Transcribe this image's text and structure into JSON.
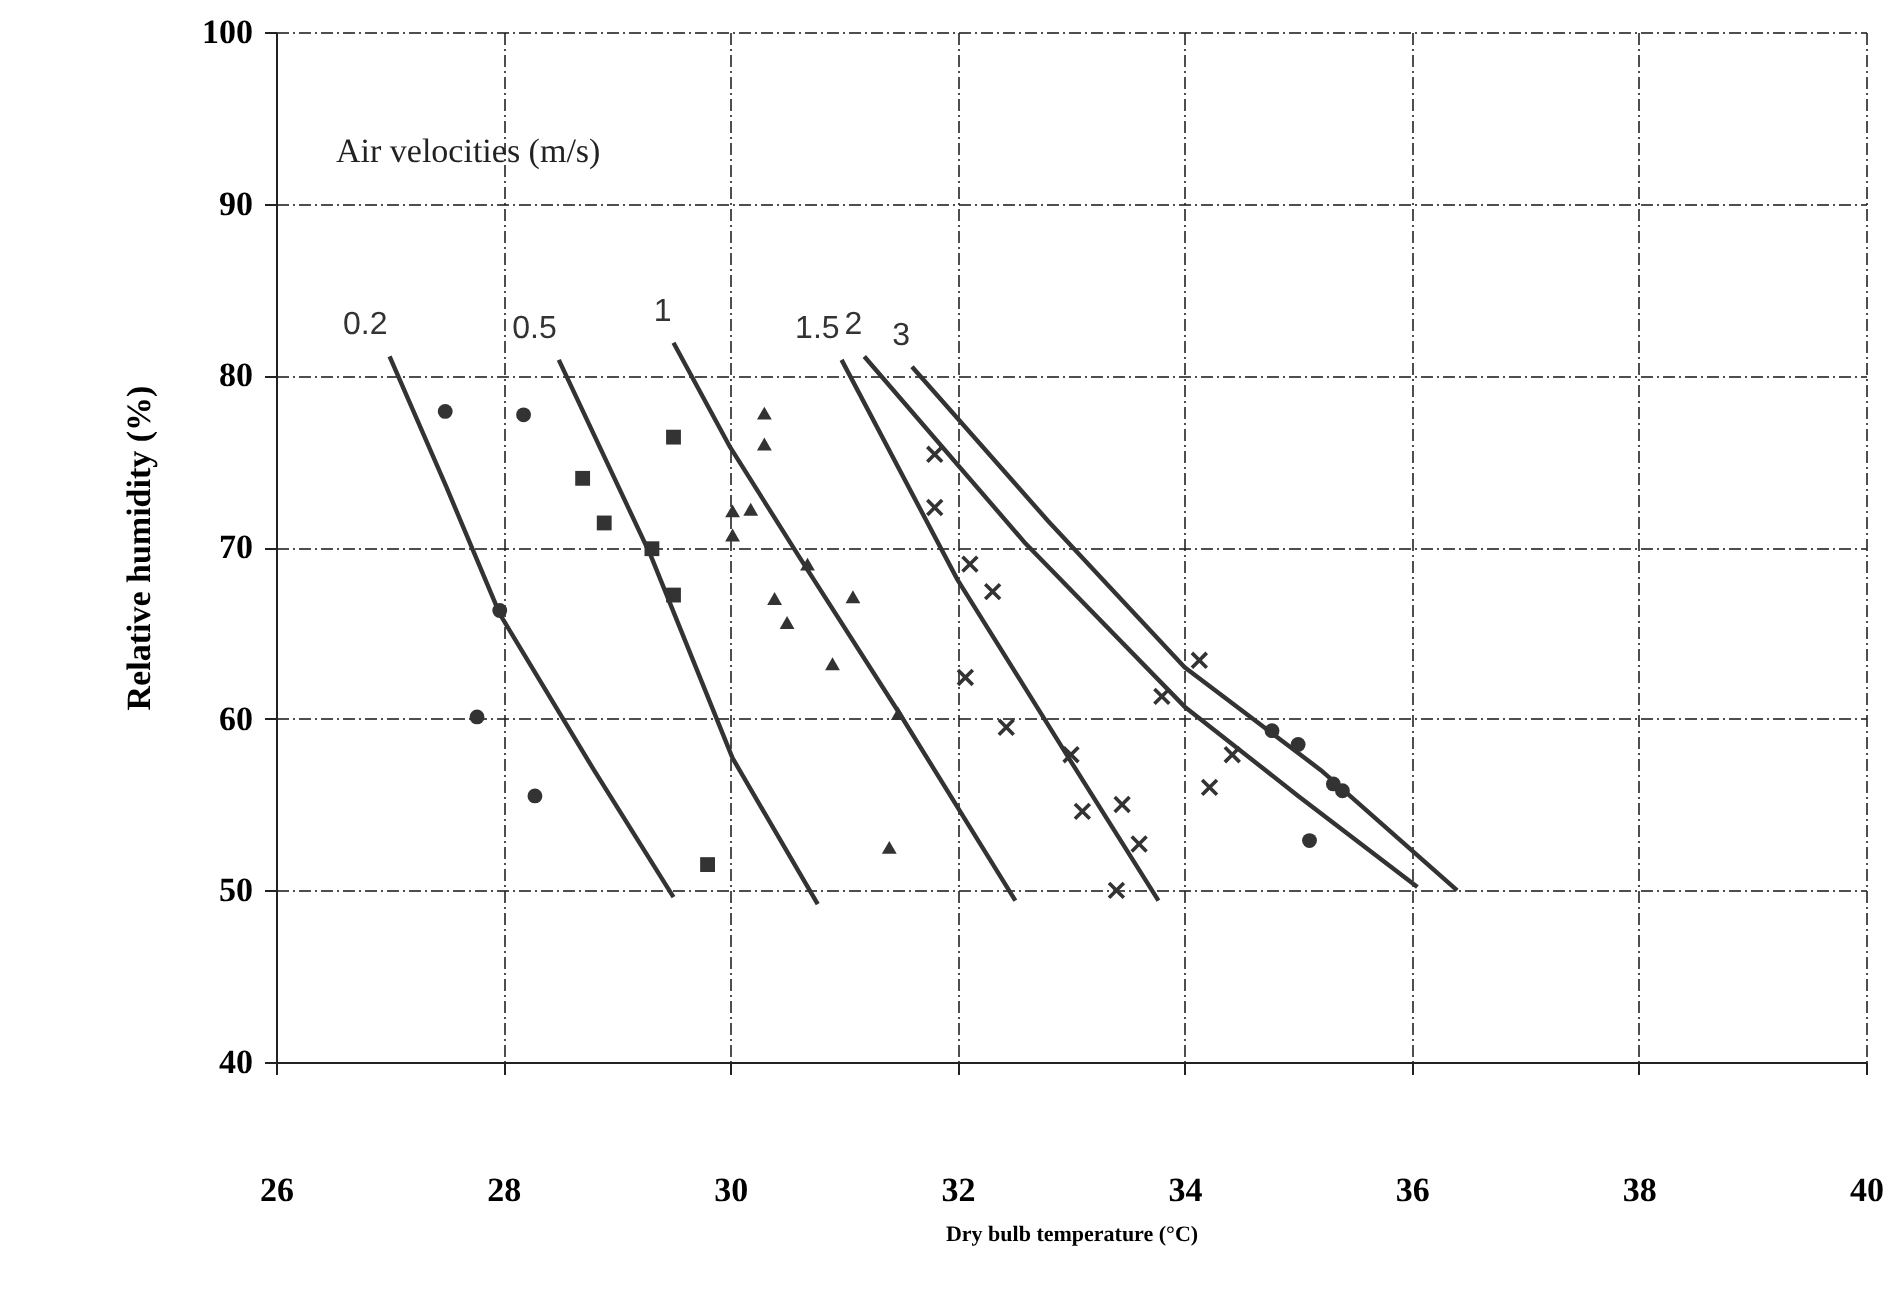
{
  "chart_data": {
    "type": "line",
    "xlabel": "Dry bulb temperature (°C)",
    "ylabel": "Relative humidity (%)",
    "legend_title": "Air velocities (m/s)",
    "xlim": [
      26,
      40
    ],
    "ylim": [
      40,
      100
    ],
    "xticks": [
      26,
      28,
      30,
      32,
      34,
      36,
      38,
      40
    ],
    "yticks": [
      40,
      50,
      60,
      70,
      80,
      90,
      100
    ],
    "grid": true,
    "legend": false,
    "series": [
      {
        "name": "0.2",
        "color": "#333333",
        "marker": "none",
        "x": [
          27.0,
          27.5,
          27.97,
          28.8,
          29.5
        ],
        "values": [
          81.1,
          73.5,
          66.1,
          57.0,
          49.6
        ]
      },
      {
        "name": "0.5",
        "color": "#333333",
        "marker": "none",
        "x": [
          28.49,
          29.3,
          30.02,
          30.77
        ],
        "values": [
          80.9,
          69.5,
          57.7,
          49.2
        ]
      },
      {
        "name": "1",
        "color": "#333333",
        "marker": "none",
        "x": [
          29.5,
          30.0,
          30.6,
          31.5,
          32.51
        ],
        "values": [
          81.9,
          75.8,
          69.5,
          60.2,
          49.4
        ]
      },
      {
        "name": "1.5",
        "color": "#333333",
        "marker": "none",
        "x": [
          30.98,
          32.0,
          33.0,
          33.77
        ],
        "values": [
          80.9,
          68.1,
          57.5,
          49.4
        ]
      },
      {
        "name": "2",
        "color": "#333333",
        "marker": "none",
        "x": [
          31.18,
          32.6,
          34.0,
          35.0,
          36.05
        ],
        "values": [
          81.1,
          70.2,
          60.7,
          55.5,
          50.2
        ]
      },
      {
        "name": "3",
        "color": "#333333",
        "marker": "none",
        "x": [
          31.6,
          32.8,
          34.0,
          35.2,
          36.4
        ],
        "values": [
          80.5,
          71.5,
          63.0,
          57.0,
          50.0
        ]
      },
      {
        "type": "scatter",
        "color": "#333333",
        "marker": "circle",
        "x": [
          27.49,
          28.18,
          27.97,
          27.77,
          28.28
        ],
        "values": [
          77.9,
          77.7,
          66.3,
          60.1,
          55.5
        ]
      },
      {
        "type": "scatter",
        "color": "#333333",
        "marker": "square",
        "x": [
          29.5,
          28.7,
          28.89,
          29.31,
          29.5,
          29.8
        ],
        "values": [
          76.4,
          74.0,
          71.4,
          69.9,
          67.2,
          51.5
        ]
      },
      {
        "type": "scatter",
        "color": "#333333",
        "marker": "triangle",
        "x": [
          30.3,
          30.3,
          30.02,
          30.18,
          30.02,
          30.68,
          30.39,
          30.5,
          30.9,
          31.08,
          31.48,
          31.4
        ],
        "values": [
          77.8,
          76.0,
          72.1,
          72.2,
          70.7,
          69.0,
          67.0,
          65.6,
          63.2,
          67.1,
          60.3,
          52.5
        ]
      },
      {
        "type": "scatter",
        "color": "#333333",
        "marker": "cross",
        "x": [
          31.8,
          31.8,
          32.11,
          32.31,
          32.07,
          32.43,
          33.0,
          33.1,
          33.45,
          33.6,
          33.4,
          33.8,
          34.13,
          34.42,
          34.22
        ],
        "values": [
          75.4,
          72.3,
          69.0,
          67.4,
          62.4,
          59.5,
          57.9,
          54.6,
          55.0,
          52.7,
          50.0,
          61.3,
          63.4,
          57.9,
          56.0
        ]
      },
      {
        "type": "scatter",
        "color": "#333333",
        "marker": "circle",
        "x": [
          34.77,
          35.0,
          35.31,
          35.39,
          35.1
        ],
        "values": [
          59.3,
          58.5,
          56.2,
          55.8,
          52.9
        ]
      }
    ]
  }
}
